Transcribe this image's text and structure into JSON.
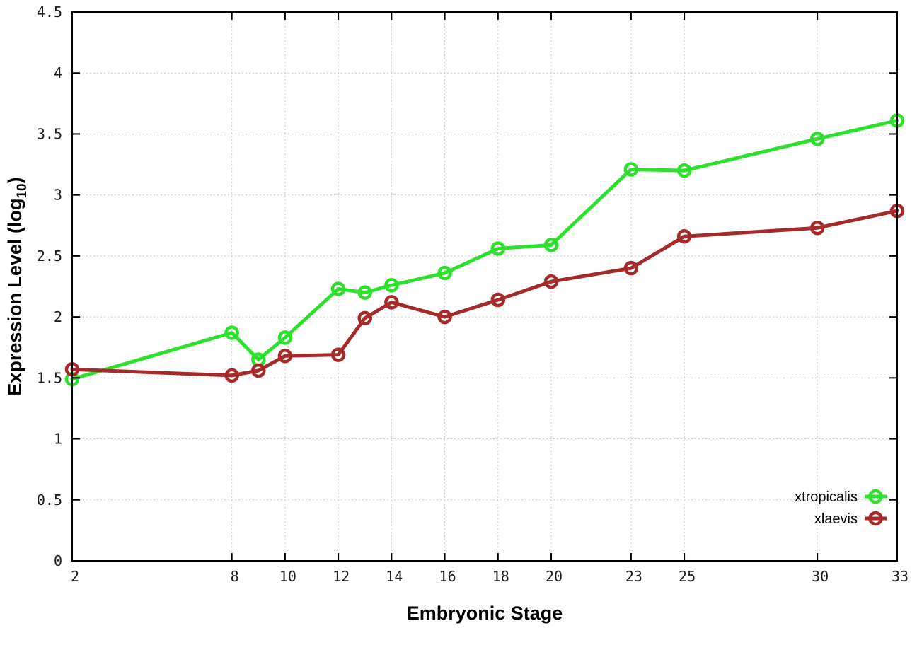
{
  "chart_data": {
    "type": "line",
    "title": "",
    "xlabel": "Embryonic Stage",
    "ylabel": "Expression Level (log10)",
    "ylabel_parts": {
      "main": "Expression Level (log",
      "sub": "10",
      "end": ")"
    },
    "xlim": [
      2,
      33
    ],
    "ylim": [
      0,
      4.5
    ],
    "grid": true,
    "legend_position": "bottom-right-inside",
    "x": [
      2,
      8,
      9,
      10,
      12,
      13,
      14,
      16,
      18,
      20,
      23,
      25,
      30,
      33
    ],
    "xticks": [
      2,
      8,
      10,
      12,
      14,
      16,
      18,
      20,
      23,
      25,
      30,
      33
    ],
    "yticks": [
      0,
      0.5,
      1,
      1.5,
      2,
      2.5,
      3,
      3.5,
      4,
      4.5
    ],
    "series": [
      {
        "name": "xtropicalis",
        "color": "#2ee02e",
        "marker": "open-circle",
        "values": [
          1.49,
          1.87,
          1.65,
          1.83,
          2.23,
          2.2,
          2.26,
          2.36,
          2.56,
          2.59,
          3.21,
          3.2,
          3.46,
          3.61
        ]
      },
      {
        "name": "xlaevis",
        "color": "#a52a2a",
        "marker": "open-circle",
        "values": [
          1.57,
          1.52,
          1.56,
          1.68,
          1.69,
          1.99,
          2.12,
          2.0,
          2.14,
          2.29,
          2.4,
          2.66,
          2.73,
          2.87
        ]
      }
    ],
    "colors": {
      "grid": "#c8c8c8",
      "border": "#000000",
      "text": "#000000",
      "background": "#ffffff"
    }
  },
  "labels": {
    "xlabel": "Embryonic Stage",
    "ylabel_main": "Expression Level (log",
    "ylabel_sub": "10",
    "ylabel_end": ")"
  }
}
